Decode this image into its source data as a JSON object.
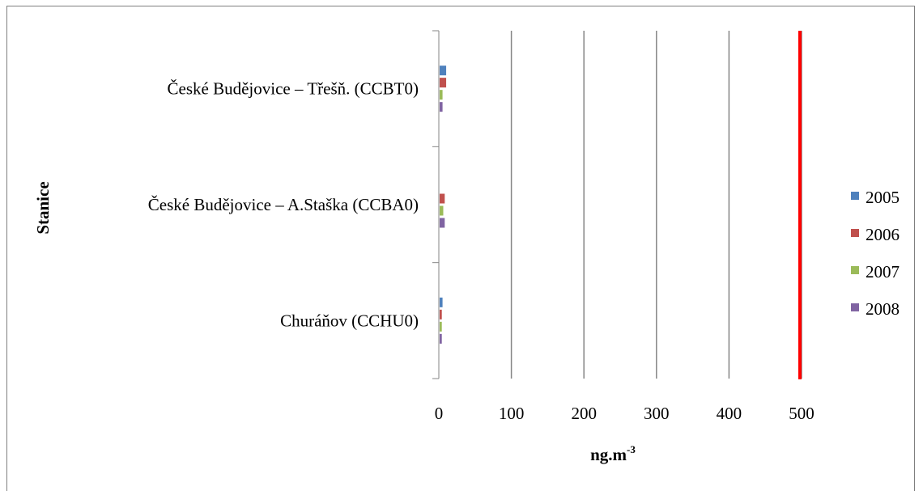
{
  "chart_data": {
    "type": "bar",
    "orientation": "horizontal",
    "categories": [
      "České Budějovice – Třešň. (CCBT0)",
      "České Budějovice – A.Staška (CCBA0)",
      "Churáňov (CCHU0)"
    ],
    "series": [
      {
        "name": "2005",
        "color": "#4f81bd",
        "values": [
          9,
          0,
          4
        ]
      },
      {
        "name": "2006",
        "color": "#c0504d",
        "values": [
          9,
          7,
          3
        ]
      },
      {
        "name": "2007",
        "color": "#9bbb59",
        "values": [
          4,
          5,
          3
        ]
      },
      {
        "name": "2008",
        "color": "#8064a2",
        "values": [
          4,
          7,
          3
        ]
      }
    ],
    "xlabel": "ng.m",
    "xlabel_superscript": "-3",
    "ylabel": "Stanice",
    "xlim": [
      0,
      500
    ],
    "xticks": [
      0,
      100,
      200,
      300,
      400,
      500
    ],
    "grid": true,
    "legend_position": "right",
    "reference_line": {
      "value": 500,
      "color": "#ff0000"
    }
  }
}
